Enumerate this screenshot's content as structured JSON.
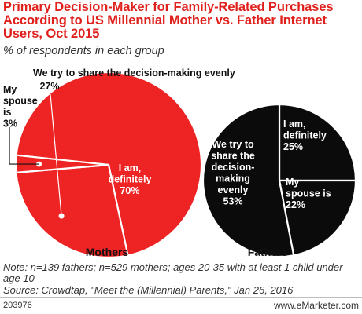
{
  "title": "Primary Decision-Maker for Family-Related Purchases According to US Millennial Mother vs. Father Internet Users, Oct 2015",
  "subtitle": "% of respondents in each group",
  "note": "Note: n=139 fathers; n=529 mothers; ages 20-35 with at least 1 child under age 10",
  "source": "Source: Crowdtap, \"Meet the (Millennial) Parents,\" Jan 26, 2016",
  "footer": {
    "id": "203976",
    "brand": "www.eMarketer.com"
  },
  "colors": {
    "mothers_fill": "#ee2323",
    "fathers_fill": "#0b0b0b",
    "divider": "#ffffff",
    "label_dark": "#111111",
    "title": "#e0201c"
  },
  "chart_data": [
    {
      "type": "pie",
      "name": "Mothers",
      "slices": [
        {
          "label": [
            "I am,",
            "definitely",
            "70%"
          ],
          "value": 70
        },
        {
          "label": [
            "We try to share the decision-making evenly",
            "27%"
          ],
          "value": 27
        },
        {
          "label": [
            "My",
            "spouse",
            "is",
            "3%"
          ],
          "value": 3
        }
      ]
    },
    {
      "type": "pie",
      "name": "Fathers",
      "slices": [
        {
          "label": [
            "I am,",
            "definitely",
            "25%"
          ],
          "value": 25
        },
        {
          "label": [
            "My",
            "spouse is",
            "22%"
          ],
          "value": 22
        },
        {
          "label": [
            "We try to",
            "share the",
            "decision-",
            "making",
            "evenly",
            "53%"
          ],
          "value": 53
        }
      ]
    }
  ]
}
